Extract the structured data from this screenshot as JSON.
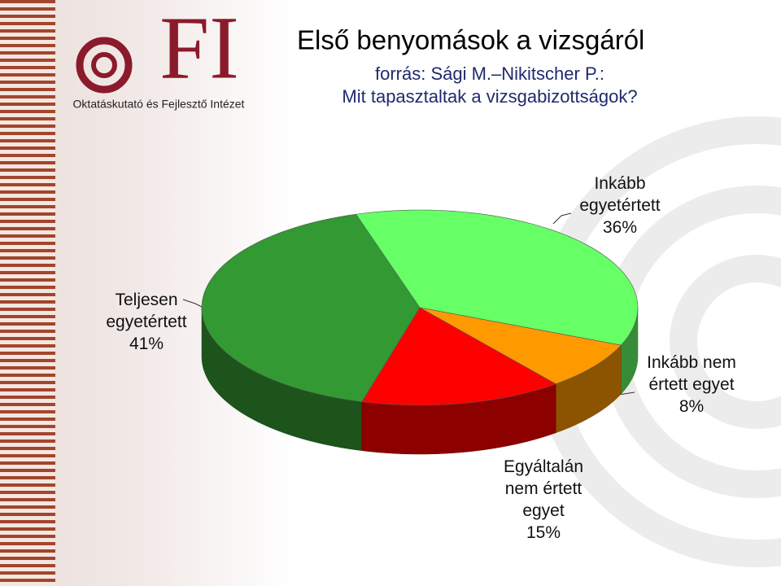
{
  "logo": {
    "mark": "FI",
    "caption": "Oktatáskutató és Fejlesztő Intézet"
  },
  "chart_data": {
    "type": "pie",
    "title": "Első benyomások a vizsgáról",
    "subtitle": [
      "forrás: Sági M.–Nikitscher P.:",
      "Mit tapasztaltak a vizsgabizottságok?"
    ],
    "categories": [
      "Teljesen egyetértett",
      "Inkább egyetértett",
      "Inkább nem értett egyet",
      "Egyáltalán nem értett egyet"
    ],
    "values": [
      41,
      36,
      8,
      15
    ],
    "value_labels": [
      "41%",
      "36%",
      "8%",
      "15%"
    ],
    "colors": [
      "#339933",
      "#66ff66",
      "#ff9900",
      "#ff0000"
    ]
  }
}
